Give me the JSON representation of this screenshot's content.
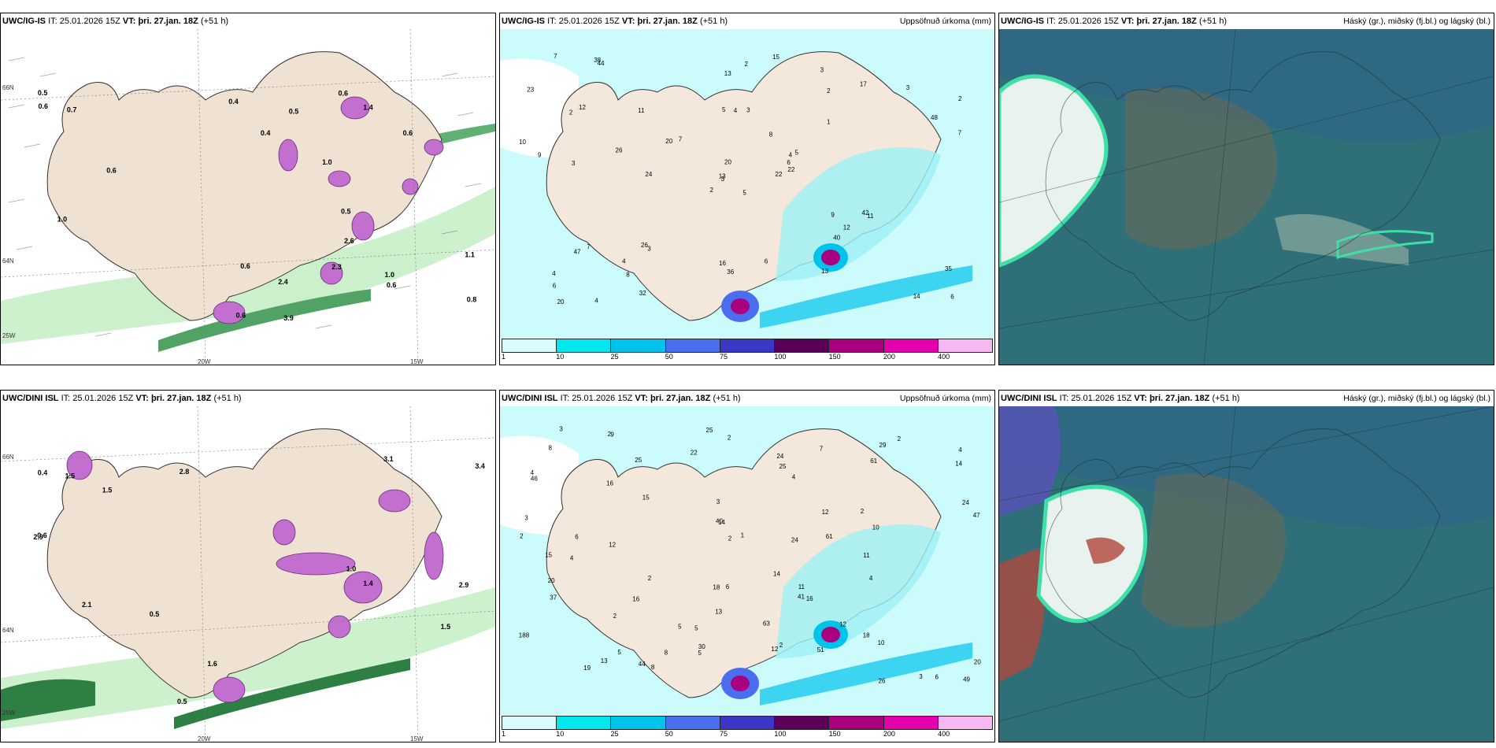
{
  "rows": [
    {
      "model": "UWC/IG-IS",
      "it_label": "IT:",
      "it_value": "25.01.2026 15Z",
      "vt_label": "VT:",
      "vt_value": "þri. 27.jan. 18Z",
      "lead": "(+51 h)",
      "precip_title": "Uppsöfnuð úrkoma (mm)",
      "cloud_title": "Háský (gr.), miðský (fj.bl.) og lágský (bl.)",
      "lon_labels": [
        "20W",
        "15W"
      ],
      "lat_labels": [
        "66N",
        "64N",
        "25W"
      ],
      "precip_values": [
        "0.4",
        "0.6",
        "0.5",
        "0.6",
        "0.6",
        "0.4",
        "3.9",
        "0.6",
        "0.6",
        "1.0",
        "1.0",
        "0.5",
        "0.5",
        "0.7",
        "0.8",
        "1.4",
        "1.1",
        "2.3",
        "2.4",
        "2.6",
        "0.6",
        "0.6",
        "1.0"
      ],
      "accum_values": [
        "5",
        "2",
        "3",
        "4",
        "4",
        "3",
        "3",
        "3",
        "2",
        "22",
        "44",
        "6",
        "3",
        "2",
        "2",
        "1",
        "4",
        "5",
        "8",
        "7",
        "7",
        "6",
        "8",
        "4",
        "5",
        "11",
        "12",
        "13",
        "9",
        "9",
        "7",
        "13",
        "16",
        "20",
        "11",
        "17",
        "26",
        "14",
        "35",
        "42",
        "15",
        "20",
        "26",
        "40",
        "32",
        "10",
        "6",
        "20",
        "36",
        "22",
        "47",
        "48",
        "23",
        "12",
        "13",
        "4",
        "38",
        "7",
        "6",
        "3",
        "2",
        "24"
      ]
    },
    {
      "model": "UWC/DINI ISL",
      "it_label": "IT:",
      "it_value": "25.01.2026 15Z",
      "vt_label": "VT:",
      "vt_value": "þri. 27.jan. 18Z",
      "lead": "(+51 h)",
      "precip_title": "Uppsöfnuð úrkoma (mm)",
      "cloud_title": "Háský (gr.), miðský (fj.bl.) og lágský (bl.)",
      "lon_labels": [
        "20W",
        "15W"
      ],
      "lat_labels": [
        "66N",
        "64N",
        "25W"
      ],
      "precip_values": [
        "0.4",
        "2.1",
        "0.5",
        "1.0",
        "1.5",
        "0.6",
        "2.9",
        "3.1",
        "2.9",
        "2.8",
        "1.5",
        "1.6",
        "3.4",
        "1.5",
        "1.4",
        "0.5"
      ],
      "accum_values": [
        "2",
        "2",
        "2",
        "4",
        "4",
        "3",
        "4",
        "4",
        "3",
        "2",
        "1",
        "4",
        "25",
        "46",
        "16",
        "2",
        "2",
        "15",
        "14",
        "13",
        "12",
        "10",
        "14",
        "14",
        "5",
        "2",
        "11",
        "9",
        "8",
        "12",
        "20",
        "26",
        "24",
        "19",
        "44",
        "37",
        "10",
        "8",
        "8",
        "15",
        "63",
        "61",
        "20",
        "47",
        "6",
        "16",
        "61",
        "188",
        "30",
        "12",
        "12",
        "18",
        "16",
        "11",
        "51",
        "22",
        "41",
        "40",
        "29",
        "25",
        "18",
        "13",
        "24",
        "49",
        "6",
        "6",
        "5",
        "2",
        "5",
        "3",
        "7",
        "3",
        "2",
        "5",
        "24",
        "25"
      ]
    }
  ],
  "colorbar": {
    "ticks": [
      "1",
      "10",
      "25",
      "50",
      "75",
      "100",
      "150",
      "200",
      "400"
    ],
    "colors": [
      "#d9fbfb",
      "#00e8ee",
      "#00c3ec",
      "#4b6df0",
      "#3a36c6",
      "#5a0058",
      "#a8007f",
      "#e400ad",
      "#f5b8f2"
    ]
  }
}
